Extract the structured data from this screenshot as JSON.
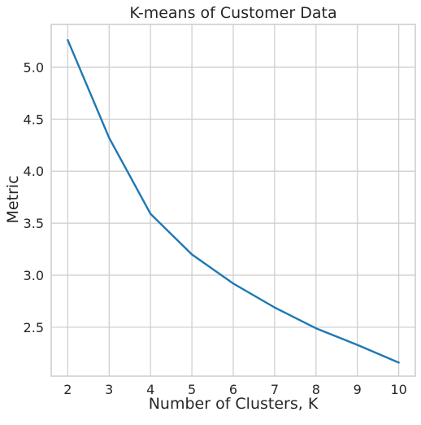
{
  "chart_data": {
    "type": "line",
    "title": "K-means of Customer Data",
    "xlabel": "Number of Clusters, K",
    "ylabel": "Metric",
    "x": [
      2,
      3,
      4,
      5,
      6,
      7,
      8,
      9,
      10
    ],
    "series": [
      {
        "values": [
          5.26,
          4.32,
          3.59,
          3.2,
          2.92,
          2.69,
          2.49,
          2.33,
          2.16
        ],
        "color": "#1f77b4"
      }
    ],
    "xlim": [
      1.6,
      10.4
    ],
    "ylim": [
      2.03,
      5.41
    ],
    "xticks": [
      "2",
      "3",
      "4",
      "5",
      "6",
      "7",
      "8",
      "9",
      "10"
    ],
    "yticks": [
      "2.5",
      "3.0",
      "3.5",
      "4.0",
      "4.5",
      "5.0"
    ],
    "grid": true
  }
}
